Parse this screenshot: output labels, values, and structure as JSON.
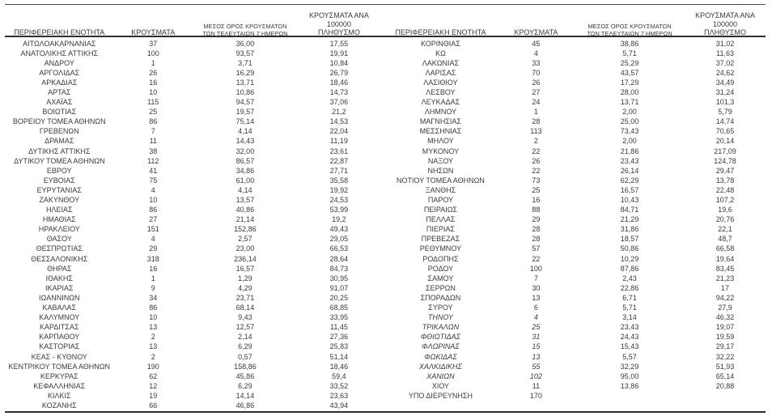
{
  "colors": {
    "background": "#ffffff",
    "text": "#3a3a3a",
    "rule": "#2e2e2e"
  },
  "header": {
    "col_region": "ΠΕΡΙΦΕΡΕΙΑΚΗ ΕΝΟΤΗΤΑ",
    "col_cases": "ΚΡΟΥΣΜΑΤΑ",
    "col_avg7_line1": "ΜΕΣΟΣ ΟΡΟΣ ΚΡΟΥΣΜΑΤΩΝ",
    "col_avg7_line2": "ΤΩΝ ΤΕΛΕΥΤΑΙΩΝ 7 ΗΜΕΡΩΝ",
    "col_per100k_line1": "ΚΡΟΥΣΜΑΤΑ ΑΝΑ 100000",
    "col_per100k_line2": "ΠΛΗΘΥΣΜΟ"
  },
  "tables": [
    {
      "rows": [
        {
          "name": "ΑΙΤΩΛΟΑΚΑΡΝΑΝΙΑΣ",
          "cases": "37",
          "avg7": "36,00",
          "per100k": "17,55"
        },
        {
          "name": "ΑΝΑΤΟΛΙΚΗΣ ΑΤΤΙΚΗΣ",
          "cases": "100",
          "avg7": "93,57",
          "per100k": "19,91"
        },
        {
          "name": "ΑΝΔΡΟΥ",
          "cases": "1",
          "avg7": "3,71",
          "per100k": "10,84"
        },
        {
          "name": "ΑΡΓΟΛΙΔΑΣ",
          "cases": "26",
          "avg7": "16,29",
          "per100k": "26,79"
        },
        {
          "name": "ΑΡΚΑΔΙΑΣ",
          "cases": "16",
          "avg7": "13,71",
          "per100k": "18,46"
        },
        {
          "name": "ΑΡΤΑΣ",
          "cases": "10",
          "avg7": "10,86",
          "per100k": "14,73"
        },
        {
          "name": "ΑΧΑΪΑΣ",
          "cases": "115",
          "avg7": "94,57",
          "per100k": "37,06"
        },
        {
          "name": "ΒΟΙΩΤΙΑΣ",
          "cases": "25",
          "avg7": "19,57",
          "per100k": "21,2"
        },
        {
          "name": "ΒΟΡΕΙΟΥ ΤΟΜΕΑ ΑΘΗΝΩΝ",
          "cases": "86",
          "avg7": "75,14",
          "per100k": "14,53"
        },
        {
          "name": "ΓΡΕΒΕΝΩΝ",
          "cases": "7",
          "avg7": "4,14",
          "per100k": "22,04"
        },
        {
          "name": "ΔΡΑΜΑΣ",
          "cases": "11",
          "avg7": "14,43",
          "per100k": "11,19"
        },
        {
          "name": "ΔΥΤΙΚΗΣ ΑΤΤΙΚΗΣ",
          "cases": "38",
          "avg7": "32,00",
          "per100k": "23,61"
        },
        {
          "name": "ΔΥΤΙΚΟΥ ΤΟΜΕΑ ΑΘΗΝΩΝ",
          "cases": "112",
          "avg7": "86,57",
          "per100k": "22,87"
        },
        {
          "name": "ΕΒΡΟΥ",
          "cases": "41",
          "avg7": "34,86",
          "per100k": "27,71"
        },
        {
          "name": "ΕΥΒΟΙΑΣ",
          "cases": "75",
          "avg7": "61,00",
          "per100k": "35,58"
        },
        {
          "name": "ΕΥΡΥΤΑΝΙΑΣ",
          "cases": "4",
          "avg7": "4,14",
          "per100k": "19,92"
        },
        {
          "name": "ΖΑΚΥΝΘΟΥ",
          "cases": "10",
          "avg7": "13,57",
          "per100k": "24,53"
        },
        {
          "name": "ΗΛΕΙΑΣ",
          "cases": "86",
          "avg7": "40,86",
          "per100k": "53,99"
        },
        {
          "name": "ΗΜΑΘΙΑΣ",
          "cases": "27",
          "avg7": "21,14",
          "per100k": "19,2"
        },
        {
          "name": "ΗΡΑΚΛΕΙΟΥ",
          "cases": "151",
          "avg7": "152,86",
          "per100k": "49,43"
        },
        {
          "name": "ΘΑΣΟΥ",
          "cases": "4",
          "avg7": "2,57",
          "per100k": "29,05"
        },
        {
          "name": "ΘΕΣΠΡΩΤΙΑΣ",
          "cases": "29",
          "avg7": "23,00",
          "per100k": "66,53"
        },
        {
          "name": "ΘΕΣΣΑΛΟΝΙΚΗΣ",
          "cases": "318",
          "avg7": "236,14",
          "per100k": "28,64"
        },
        {
          "name": "ΘΗΡΑΣ",
          "cases": "16",
          "avg7": "16,57",
          "per100k": "84,73"
        },
        {
          "name": "ΙΘΑΚΗΣ",
          "cases": "1",
          "avg7": "1,29",
          "per100k": "30,95"
        },
        {
          "name": "ΙΚΑΡΙΑΣ",
          "cases": "9",
          "avg7": "4,29",
          "per100k": "91,07"
        },
        {
          "name": "ΙΩΑΝΝΙΝΩΝ",
          "cases": "34",
          "avg7": "23,71",
          "per100k": "20,25"
        },
        {
          "name": "ΚΑΒΑΛΑΣ",
          "cases": "86",
          "avg7": "68,14",
          "per100k": "68,85"
        },
        {
          "name": "ΚΑΛΥΜΝΟΥ",
          "cases": "10",
          "avg7": "9,43",
          "per100k": "33,95"
        },
        {
          "name": "ΚΑΡΔΙΤΣΑΣ",
          "cases": "13",
          "avg7": "12,57",
          "per100k": "11,45"
        },
        {
          "name": "ΚΑΡΠΑΘΟΥ",
          "cases": "2",
          "avg7": "2,14",
          "per100k": "27,36"
        },
        {
          "name": "ΚΑΣΤΟΡΙΑΣ",
          "cases": "13",
          "avg7": "6,29",
          "per100k": "25,83"
        },
        {
          "name": "ΚΕΑΣ - ΚΥΘΝΟΥ",
          "cases": "2",
          "avg7": "0,57",
          "per100k": "51,14"
        },
        {
          "name": "ΚΕΝΤΡΙΚΟΥ ΤΟΜΕΑ ΑΘΗΝΩΝ",
          "cases": "190",
          "avg7": "158,86",
          "per100k": "18,46"
        },
        {
          "name": "ΚΕΡΚΥΡΑΣ",
          "cases": "62",
          "avg7": "45,86",
          "per100k": "59,4"
        },
        {
          "name": "ΚΕΦΑΛΛΗΝΙΑΣ",
          "cases": "12",
          "avg7": "6,29",
          "per100k": "33,52"
        },
        {
          "name": "ΚΙΛΚΙΣ",
          "cases": "19",
          "avg7": "14,14",
          "per100k": "23,63"
        },
        {
          "name": "ΚΟΖΑΝΗΣ",
          "cases": "66",
          "avg7": "46,86",
          "per100k": "43,94"
        }
      ]
    },
    {
      "rows": [
        {
          "name": "ΚΟΡΙΝΘΙΑΣ",
          "cases": "45",
          "avg7": "38,86",
          "per100k": "31,02"
        },
        {
          "name": "ΚΩ",
          "cases": "4",
          "avg7": "5,71",
          "per100k": "11,63"
        },
        {
          "name": "ΛΑΚΩΝΙΑΣ",
          "cases": "33",
          "avg7": "25,29",
          "per100k": "37,02"
        },
        {
          "name": "ΛΑΡΙΣΑΣ",
          "cases": "70",
          "avg7": "43,57",
          "per100k": "24,62"
        },
        {
          "name": "ΛΑΣΙΘΙΟΥ",
          "cases": "26",
          "avg7": "17,29",
          "per100k": "34,49"
        },
        {
          "name": "ΛΕΣΒΟΥ",
          "cases": "27",
          "avg7": "28,00",
          "per100k": "31,24"
        },
        {
          "name": "ΛΕΥΚΑΔΑΣ",
          "cases": "24",
          "avg7": "13,71",
          "per100k": "101,3"
        },
        {
          "name": "ΛΗΜΝΟΥ",
          "cases": "1",
          "avg7": "2,00",
          "per100k": "5,79"
        },
        {
          "name": "ΜΑΓΝΗΣΙΑΣ",
          "cases": "28",
          "avg7": "25,00",
          "per100k": "14,74"
        },
        {
          "name": "ΜΕΣΣΗΝΙΑΣ",
          "cases": "113",
          "avg7": "73,43",
          "per100k": "70,65"
        },
        {
          "name": "ΜΗΛΟΥ",
          "cases": "2",
          "avg7": "2,00",
          "per100k": "20,14"
        },
        {
          "name": "ΜΥΚΟΝΟΥ",
          "cases": "22",
          "avg7": "21,86",
          "per100k": "217,09"
        },
        {
          "name": "ΝΑΞΟΥ",
          "cases": "26",
          "avg7": "23,43",
          "per100k": "124,78"
        },
        {
          "name": "ΝΗΣΩΝ",
          "cases": "22",
          "avg7": "26,14",
          "per100k": "29,47"
        },
        {
          "name": "ΝΟΤΙΟΥ ΤΟΜΕΑ ΑΘΗΝΩΝ",
          "cases": "73",
          "avg7": "62,29",
          "per100k": "13,78"
        },
        {
          "name": "ΞΑΝΘΗΣ",
          "cases": "25",
          "avg7": "16,57",
          "per100k": "22,48"
        },
        {
          "name": "ΠΑΡΟΥ",
          "cases": "16",
          "avg7": "10,43",
          "per100k": "107,2"
        },
        {
          "name": "ΠΕΙΡΑΙΩΣ",
          "cases": "88",
          "avg7": "84,71",
          "per100k": "19,6"
        },
        {
          "name": "ΠΕΛΛΑΣ",
          "cases": "29",
          "avg7": "21,29",
          "per100k": "20,76"
        },
        {
          "name": "ΠΙΕΡΙΑΣ",
          "cases": "28",
          "avg7": "31,86",
          "per100k": "22,1"
        },
        {
          "name": "ΠΡΕΒΕΖΑΣ",
          "cases": "28",
          "avg7": "18,57",
          "per100k": "48,7"
        },
        {
          "name": "ΡΕΘΥΜΝΟΥ",
          "cases": "57",
          "avg7": "50,86",
          "per100k": "66,58"
        },
        {
          "name": "ΡΟΔΟΠΗΣ",
          "cases": "22",
          "avg7": "10,29",
          "per100k": "19,64"
        },
        {
          "name": "ΡΟΔΟΥ",
          "cases": "100",
          "avg7": "87,86",
          "per100k": "83,45"
        },
        {
          "name": "ΣΑΜΟΥ",
          "cases": "7",
          "avg7": "2,43",
          "per100k": "21,23"
        },
        {
          "name": "ΣΕΡΡΩΝ",
          "cases": "30",
          "avg7": "22,86",
          "per100k": "17"
        },
        {
          "name": "ΣΠΟΡΑΔΩΝ",
          "cases": "13",
          "avg7": "6,71",
          "per100k": "94,22"
        },
        {
          "name": "ΣΥΡΟΥ",
          "cases": "6",
          "avg7": "5,71",
          "per100k": "27,9"
        },
        {
          "name": "ΤΗΝΟΥ",
          "cases": "4",
          "avg7": "3,14",
          "per100k": "46,32",
          "italic": true
        },
        {
          "name": "ΤΡΙΚΑΛΩΝ",
          "cases": "25",
          "avg7": "23,43",
          "per100k": "19,07",
          "italic": true
        },
        {
          "name": "ΦΘΙΩΤΙΔΑΣ",
          "cases": "31",
          "avg7": "24,43",
          "per100k": "19,59",
          "italic": true
        },
        {
          "name": "ΦΛΩΡΙΝΑΣ",
          "cases": "15",
          "avg7": "15,43",
          "per100k": "29,17",
          "italic": true
        },
        {
          "name": "ΦΩΚΙΔΑΣ",
          "cases": "13",
          "avg7": "5,57",
          "per100k": "32,22",
          "italic": true
        },
        {
          "name": "ΧΑΛΚΙΔΙΚΗΣ",
          "cases": "55",
          "avg7": "32,29",
          "per100k": "51,93",
          "italic": true
        },
        {
          "name": "ΧΑΝΙΩΝ",
          "cases": "102",
          "avg7": "95,00",
          "per100k": "65,14",
          "italic": true
        },
        {
          "name": "ΧΙΟΥ",
          "cases": "11",
          "avg7": "13,86",
          "per100k": "20,88"
        },
        {
          "name": "ΥΠΟ ΔΙΕΡΕΥΝΗΣΗ",
          "cases": "170",
          "avg7": "",
          "per100k": ""
        }
      ]
    }
  ]
}
